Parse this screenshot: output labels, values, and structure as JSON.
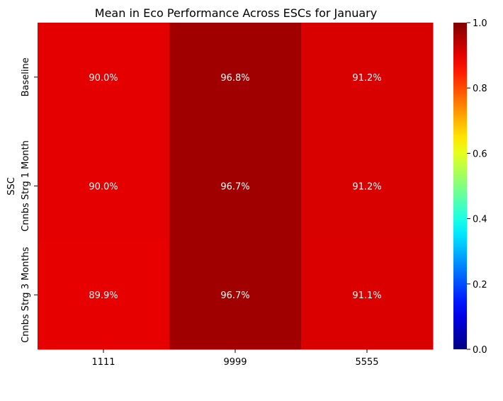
{
  "chart_data": {
    "type": "heatmap",
    "title": "Mean in Eco Performance Across ESCs for January",
    "xlabel": "",
    "ylabel": "SSC",
    "x_categories": [
      "1111",
      "9999",
      "5555"
    ],
    "y_categories": [
      "Baseline",
      "Cnnbs Strg 1 Month",
      "Cnnbs Strg 3 Months"
    ],
    "values": [
      [
        0.9,
        0.968,
        0.912
      ],
      [
        0.9,
        0.967,
        0.912
      ],
      [
        0.899,
        0.967,
        0.911
      ]
    ],
    "cell_labels": [
      [
        "90.0%",
        "96.8%",
        "91.2%"
      ],
      [
        "90.0%",
        "96.7%",
        "91.2%"
      ],
      [
        "89.9%",
        "96.7%",
        "91.1%"
      ]
    ],
    "colormap": "jet",
    "vmin": 0.0,
    "vmax": 1.0,
    "colorbar_ticks": [
      "0.0",
      "0.2",
      "0.4",
      "0.6",
      "0.8",
      "1.0"
    ],
    "colorbar_tick_values": [
      0.0,
      0.2,
      0.4,
      0.6,
      0.8,
      1.0
    ],
    "grid": false,
    "colorbar_position": "right"
  }
}
